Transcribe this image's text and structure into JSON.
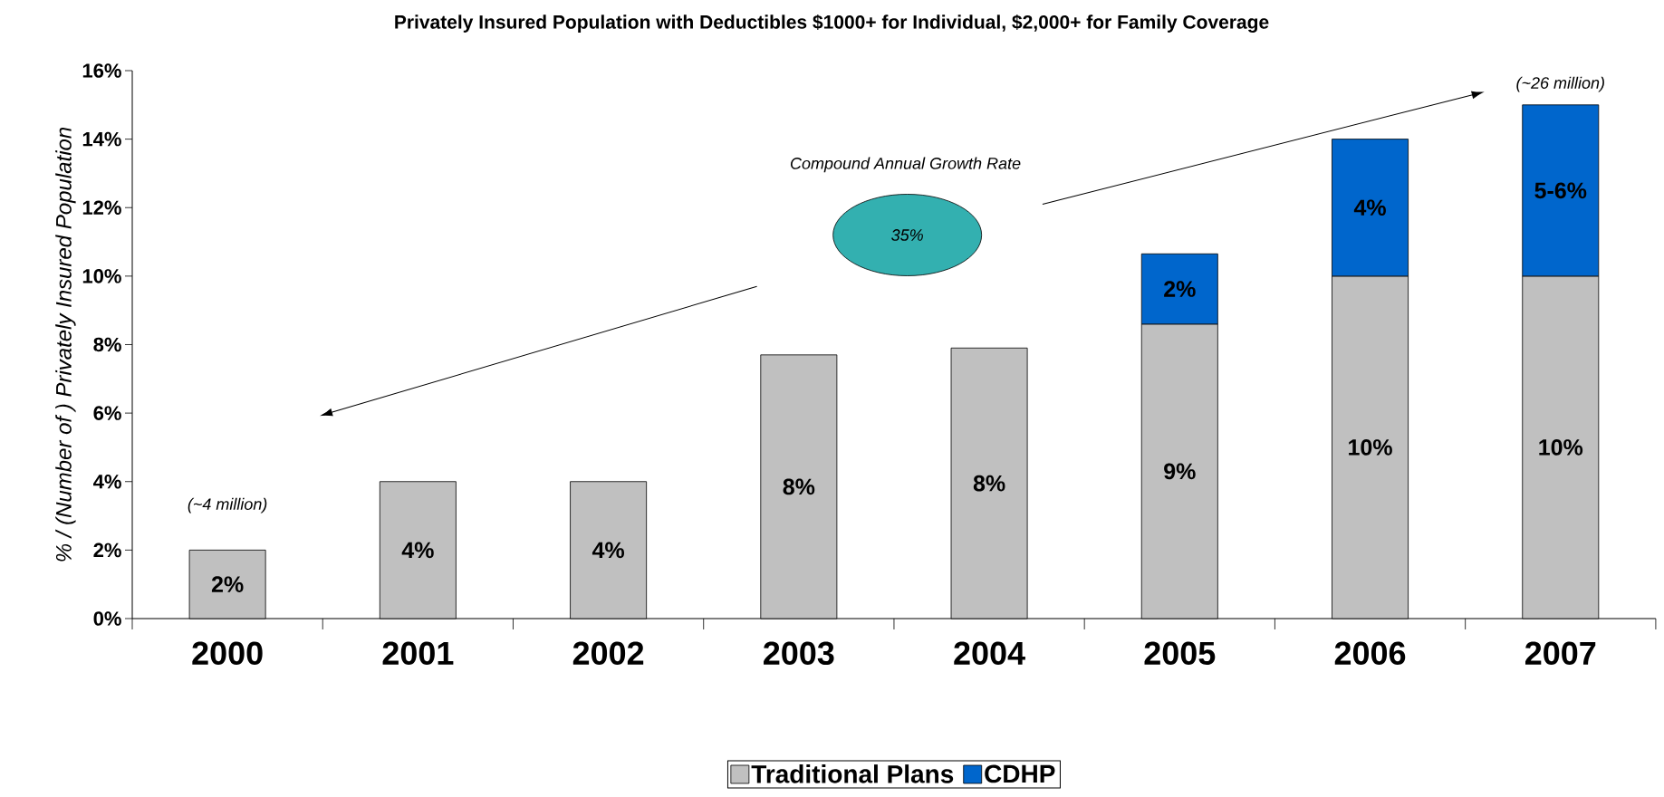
{
  "chart_data": {
    "type": "bar",
    "title": "Privately Insured Population with Deductibles $1000+ for Individual, $2,000+ for Family Coverage",
    "ylabel": "% / (Number of ) Privately Insured Population",
    "categories": [
      "2000",
      "2001",
      "2002",
      "2003",
      "2004",
      "2005",
      "2006",
      "2007"
    ],
    "stacked": true,
    "series": [
      {
        "name": "Traditional Plans",
        "color": "#c0c0c0",
        "values": [
          2,
          4,
          4,
          7.7,
          7.9,
          8.6,
          10,
          10
        ],
        "value_labels": [
          "2%",
          "4%",
          "4%",
          "8%",
          "8%",
          "9%",
          "10%",
          "10%"
        ]
      },
      {
        "name": "CDHP",
        "color": "#0066cc",
        "values": [
          null,
          null,
          null,
          null,
          null,
          2.05,
          4,
          5
        ],
        "value_labels": [
          null,
          null,
          null,
          null,
          null,
          "2%",
          "4%",
          "5-6%"
        ]
      }
    ],
    "ylim": [
      0,
      16
    ],
    "yticks": [
      {
        "value": 0,
        "label": "0%"
      },
      {
        "value": 2,
        "label": "2%"
      },
      {
        "value": 4,
        "label": "4%"
      },
      {
        "value": 6,
        "label": "6%"
      },
      {
        "value": 8,
        "label": "8%"
      },
      {
        "value": 10,
        "label": "10%"
      },
      {
        "value": 12,
        "label": "12%"
      },
      {
        "value": 14,
        "label": "14%"
      },
      {
        "value": 16,
        "label": "16%"
      }
    ],
    "legend": "bottom",
    "grid": false,
    "annotations": [
      "(~4 million)",
      "(~26 million)",
      "Compound Annual Growth Rate",
      "35%"
    ]
  }
}
